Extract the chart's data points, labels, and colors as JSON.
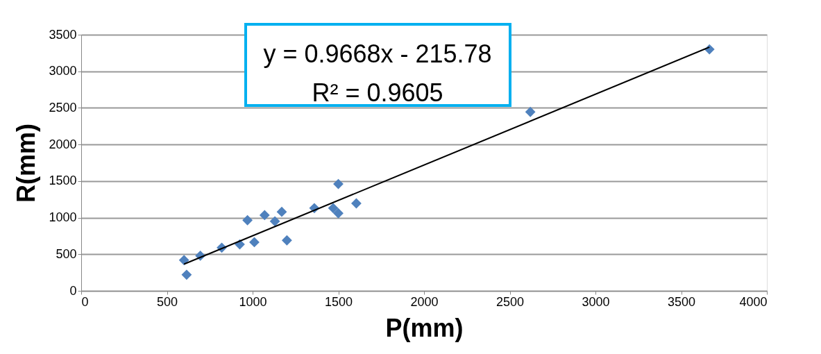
{
  "chart_data": {
    "type": "scatter",
    "xlabel": "P(mm)",
    "ylabel": "R(mm)",
    "series": [
      {
        "color": "#4f81bd",
        "marker": "diamond",
        "x": [
          600,
          615,
          695,
          820,
          925,
          970,
          1010,
          1070,
          1130,
          1170,
          1200,
          1360,
          1470,
          1500,
          1500,
          1605,
          2620,
          3665
        ],
        "values": [
          420,
          220,
          480,
          590,
          635,
          965,
          665,
          1035,
          950,
          1080,
          690,
          1130,
          1130,
          1060,
          1460,
          1195,
          2445,
          3300
        ]
      },
      {
        "type": "line",
        "color": "#000000",
        "line_style": "solid",
        "x": [
          600,
          3665
        ],
        "values": [
          365,
          3330
        ]
      }
    ],
    "xlim": [
      0,
      4000
    ],
    "xticks": [
      0,
      500,
      1000,
      1500,
      2000,
      2500,
      3000,
      3500,
      4000
    ],
    "ylim": [
      0,
      3500
    ],
    "yticks": [
      0,
      500,
      1000,
      1500,
      2000,
      2500,
      3000,
      3500
    ],
    "grid": "y",
    "annotations": [
      "y = 0.9668x - 215.78",
      "R² = 0.9605"
    ]
  }
}
